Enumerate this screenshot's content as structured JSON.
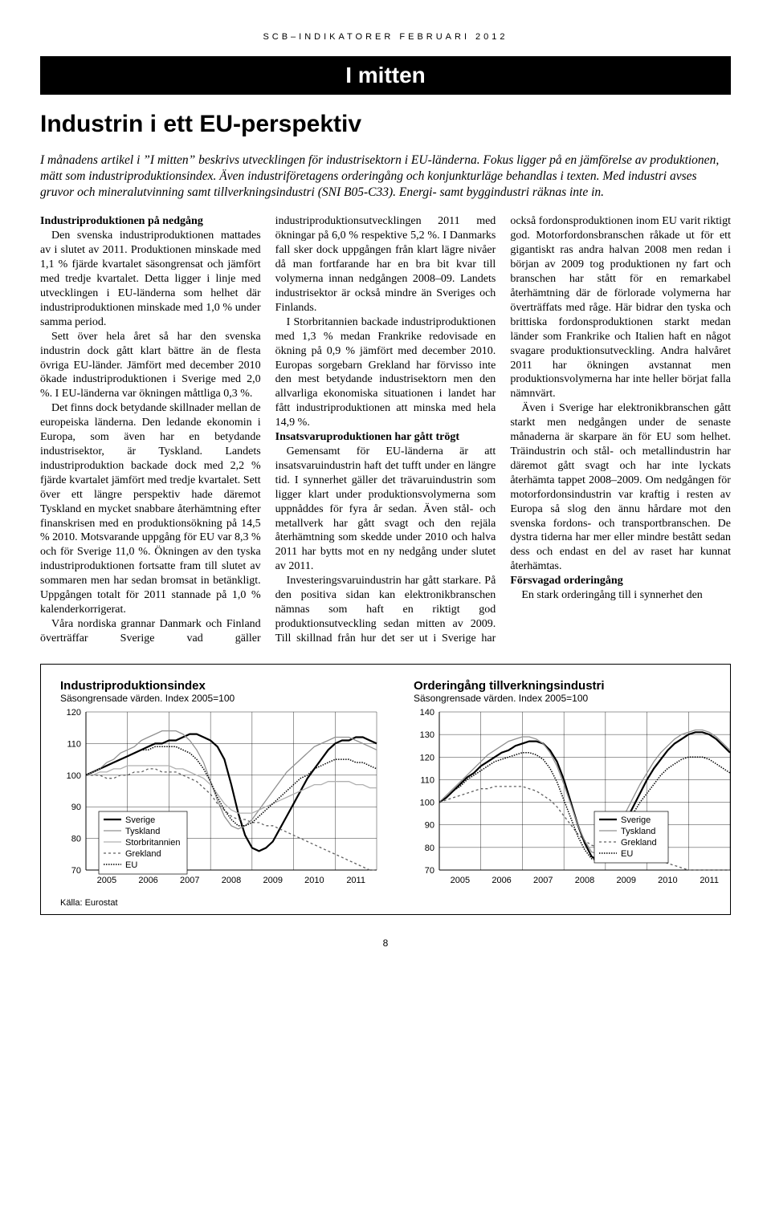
{
  "header": {
    "running": "SCB–INDIKATORER FEBRUARI 2012",
    "banner": "I mitten",
    "title": "Industrin i ett EU-perspektiv"
  },
  "lead": "I månadens artikel i ”I mitten” beskrivs utvecklingen för industrisektorn i EU-länderna. Fokus ligger på en jämförelse av produktionen, mätt som industriproduktionsindex. Även industriföretagens orderingång och konjunkturläge behandlas i texten. Med industri avses gruvor och mineralutvinning samt tillverkningsindustri (SNI B05-C33). Energi- samt byggindustri räknas inte in.",
  "body": {
    "h1": "Industriproduktionen på nedgång",
    "p1": "Den svenska industriproduktionen mattades av i slutet av 2011. Produktionen minskade med 1,1 % fjärde kvartalet säsongrensat och jämfört med tredje kvartalet. Detta ligger i linje med utvecklingen i EU-länderna som helhet där industriproduktionen minskade med 1,0 % under samma period.",
    "p2": "Sett över hela året så har den svenska industrin dock gått klart bättre än de flesta övriga EU-länder. Jämfört med december 2010 ökade industriproduktionen i Sverige med 2,0 %. I EU-länderna var ökningen måttliga 0,3 %.",
    "p3": "Det finns dock betydande skillnader mellan de europeiska länderna. Den ledande ekonomin i Europa, som även har en betydande industrisektor, är Tyskland. Landets industriproduktion backade dock med 2,2 % fjärde kvartalet jämfört med tredje kvartalet. Sett över ett längre perspektiv hade däremot Tyskland en mycket snabbare återhämtning efter finanskrisen med en produktionsökning på 14,5 % 2010. Motsvarande uppgång för EU var 8,3 % och för Sverige 11,0 %. Ökningen av den tyska industriproduktionen fortsatte fram till slutet av sommaren men har sedan bromsat in betänkligt. Uppgången totalt för 2011 stannade på 1,0 % kalenderkorrigerat.",
    "p4": "Våra nordiska grannar Danmark och Finland överträffar Sverige vad gäller industriproduktionsutvecklingen 2011 med ökningar på 6,0 % respektive 5,2 %. I Danmarks fall sker dock uppgången från klart lägre nivåer då man fortfarande har en bra bit kvar till volymerna innan nedgången 2008–09. Landets industrisektor är också mindre än Sveriges och Finlands.",
    "p5": "I Storbritannien backade industriproduktionen med 1,3 % medan Frankrike redovisade en ökning på 0,9 % jämfört med december 2010. Europas sorgebarn Grekland har förvisso inte den mest betydande industrisektorn men den allvarliga ekonomiska situationen i landet har fått industriproduktionen att minska med hela 14,9 %.",
    "h2": "Insatsvaruproduktionen har gått trögt",
    "p6": "Gemensamt för EU-länderna är att insatsvaruindustrin haft det tufft under en längre tid. I synnerhet gäller det trävaruindustrin som ligger klart under produktionsvolymerna som uppnåddes för fyra år sedan. Även stål- och metallverk har gått svagt och den rejäla återhämtning som skedde under 2010 och halva 2011 har bytts mot en ny nedgång under slutet av 2011.",
    "p7": "Investeringsvaruindustrin har gått starkare. På den positiva sidan kan elektronikbranschen nämnas som haft en riktigt god produktionsutveckling sedan mitten av 2009. Till skillnad från hur det ser ut i Sverige har också fordonsproduktionen inom EU varit riktigt god. Motorfordonsbranschen råkade ut för ett gigantiskt ras andra halvan 2008 men redan i början av 2009 tog produktionen ny fart och branschen har stått för en remarkabel återhämtning där de förlorade volymerna har överträffats med råge. Här bidrar den tyska och brittiska fordonsproduktionen starkt medan länder som Frankrike och Italien haft en något svagare produktionsutveckling. Andra halvåret 2011 har ökningen avstannat men produktionsvolymerna har inte heller börjat falla nämnvärt.",
    "p8": "Även i Sverige har elektronikbranschen gått starkt men nedgången under de senaste månaderna är skarpare än för EU som helhet. Träindustrin och stål- och metallindustrin har däremot gått svagt och har inte lyckats återhämta tappet 2008–2009. Om nedgången för motorfordonsindustrin var kraftig i resten av Europa så slog den ännu hårdare mot den svenska fordons- och transportbranschen. De dystra tiderna har mer eller mindre bestått sedan dess och endast en del av raset har kunnat återhämtas.",
    "h3": "Försvagad orderingång",
    "p9": "En stark orderingång till i synnerhet den"
  },
  "chart1": {
    "type": "line",
    "title": "Industriproduktionsindex",
    "subtitle": "Säsongrensade värden. Index 2005=100",
    "x_labels": [
      "2005",
      "2006",
      "2007",
      "2008",
      "2009",
      "2010",
      "2011"
    ],
    "y_ticks": [
      70,
      80,
      90,
      100,
      110,
      120
    ],
    "ylim": [
      70,
      120
    ],
    "legend": [
      "Sverige",
      "Tyskland",
      "Storbritannien",
      "Grekland",
      "EU"
    ],
    "series_colors": {
      "Sverige": "#000000",
      "Tyskland": "#909090",
      "Storbritannien": "#b0b0b0",
      "Grekland": "#606060",
      "EU": "#000000"
    },
    "series_dash": {
      "Sverige": "",
      "Tyskland": "",
      "Storbritannien": "",
      "Grekland": "3,3",
      "EU": "1.5,1.5"
    },
    "series_width": {
      "Sverige": 2.2,
      "Tyskland": 1.3,
      "Storbritannien": 1.3,
      "Grekland": 1.3,
      "EU": 1.5
    },
    "series": {
      "Sverige": [
        100,
        101,
        102,
        103,
        104,
        105,
        106,
        107,
        108,
        109,
        110,
        110,
        111,
        111,
        112,
        113,
        113,
        112,
        111,
        109,
        105,
        97,
        88,
        81,
        77,
        76,
        77,
        79,
        83,
        87,
        91,
        95,
        99,
        102,
        105,
        108,
        110,
        111,
        111,
        112,
        112,
        111,
        110
      ],
      "Tyskland": [
        100,
        101,
        102,
        104,
        105,
        107,
        108,
        109,
        111,
        112,
        113,
        114,
        114,
        114,
        113,
        111,
        108,
        104,
        98,
        92,
        87,
        84,
        83,
        84,
        86,
        89,
        92,
        95,
        98,
        101,
        103,
        105,
        107,
        109,
        110,
        111,
        112,
        112,
        112,
        111,
        110,
        109,
        108
      ],
      "Storbritannien": [
        100,
        100,
        101,
        101,
        102,
        102,
        103,
        103,
        103,
        103,
        103,
        103,
        103,
        102,
        102,
        101,
        100,
        99,
        97,
        94,
        91,
        89,
        88,
        88,
        88,
        89,
        90,
        91,
        92,
        93,
        94,
        95,
        96,
        97,
        97,
        98,
        98,
        98,
        98,
        97,
        97,
        96,
        96
      ],
      "Grekland": [
        100,
        100,
        100,
        99,
        99,
        100,
        100,
        101,
        101,
        102,
        102,
        101,
        101,
        101,
        100,
        99,
        98,
        96,
        94,
        91,
        89,
        87,
        86,
        86,
        85,
        85,
        84,
        84,
        83,
        82,
        81,
        80,
        79,
        78,
        77,
        76,
        75,
        74,
        73,
        72,
        71,
        70,
        70
      ],
      "EU": [
        100,
        101,
        102,
        103,
        104,
        105,
        106,
        107,
        108,
        108,
        109,
        109,
        109,
        109,
        108,
        107,
        105,
        102,
        98,
        93,
        89,
        86,
        84,
        84,
        85,
        87,
        89,
        91,
        93,
        95,
        97,
        99,
        100,
        102,
        103,
        104,
        105,
        105,
        105,
        104,
        104,
        103,
        102
      ]
    },
    "background_color": "#ffffff",
    "grid_color": "#000000",
    "axis_fontsize": 11
  },
  "chart2": {
    "type": "line",
    "title": "Orderingång tillverkningsindustri",
    "subtitle": "Säsongrensade värden. Index 2005=100",
    "x_labels": [
      "2005",
      "2006",
      "2007",
      "2008",
      "2009",
      "2010",
      "2011"
    ],
    "y_ticks": [
      70,
      80,
      90,
      100,
      110,
      120,
      130,
      140
    ],
    "ylim": [
      70,
      140
    ],
    "legend": [
      "Sverige",
      "Tyskland",
      "Grekland",
      "EU"
    ],
    "series_colors": {
      "Sverige": "#000000",
      "Tyskland": "#909090",
      "Grekland": "#606060",
      "EU": "#000000"
    },
    "series_dash": {
      "Sverige": "",
      "Tyskland": "",
      "Grekland": "3,3",
      "EU": "1.5,1.5"
    },
    "series_width": {
      "Sverige": 2.2,
      "Tyskland": 1.3,
      "Grekland": 1.3,
      "EU": 1.5
    },
    "series": {
      "Sverige": [
        100,
        102,
        105,
        108,
        111,
        113,
        116,
        118,
        120,
        122,
        123,
        125,
        126,
        127,
        127,
        126,
        123,
        118,
        110,
        100,
        90,
        82,
        76,
        74,
        76,
        80,
        86,
        92,
        98,
        104,
        110,
        115,
        119,
        123,
        126,
        128,
        130,
        131,
        131,
        130,
        128,
        125,
        122
      ],
      "Tyskland": [
        100,
        103,
        106,
        109,
        112,
        115,
        118,
        121,
        123,
        125,
        127,
        128,
        129,
        129,
        128,
        126,
        122,
        116,
        108,
        99,
        90,
        83,
        78,
        77,
        79,
        84,
        90,
        96,
        102,
        108,
        113,
        118,
        122,
        125,
        128,
        130,
        131,
        132,
        132,
        131,
        129,
        126,
        123
      ],
      "Grekland": [
        100,
        101,
        102,
        103,
        104,
        105,
        106,
        106,
        107,
        107,
        107,
        107,
        107,
        106,
        105,
        103,
        101,
        98,
        94,
        90,
        86,
        83,
        81,
        80,
        79,
        79,
        78,
        78,
        77,
        76,
        76,
        75,
        74,
        73,
        72,
        71,
        70,
        70,
        70,
        70,
        70,
        70,
        70
      ],
      "EU": [
        100,
        102,
        105,
        107,
        110,
        112,
        114,
        116,
        118,
        119,
        120,
        121,
        122,
        122,
        121,
        119,
        115,
        109,
        101,
        93,
        85,
        79,
        75,
        74,
        76,
        80,
        85,
        90,
        95,
        100,
        104,
        108,
        112,
        115,
        117,
        119,
        120,
        120,
        120,
        119,
        117,
        115,
        113
      ]
    },
    "background_color": "#ffffff",
    "grid_color": "#000000",
    "axis_fontsize": 11
  },
  "source": "Källa: Eurostat",
  "page_number": "8"
}
